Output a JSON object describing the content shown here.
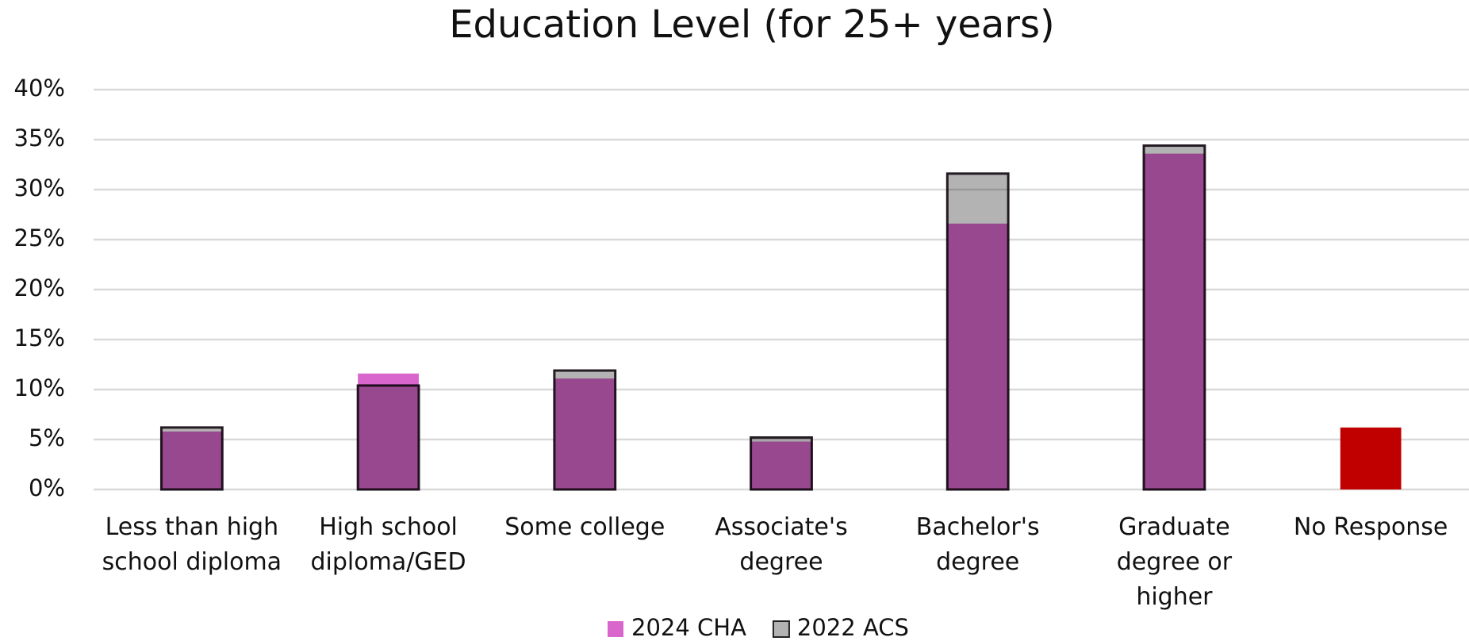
{
  "chart_data": {
    "type": "bar",
    "title": "Education Level (for 25+ years)",
    "categories": [
      "Less than high school diploma",
      "High school diploma/GED",
      "Some college",
      "Associate's degree",
      "Bachelor's degree",
      "Graduate degree or higher",
      "No Response"
    ],
    "series": [
      {
        "name": "2024 CHA",
        "color": "#d966cc",
        "colors": [
          "#d966cc",
          "#d966cc",
          "#d966cc",
          "#d966cc",
          "#d966cc",
          "#d966cc",
          "#c00000"
        ],
        "values": [
          5.8,
          11.6,
          11.1,
          4.8,
          26.6,
          33.6,
          6.2
        ]
      },
      {
        "name": "2022 ACS",
        "color": "#b3b3b3",
        "values": [
          6.2,
          10.4,
          11.9,
          5.2,
          31.6,
          34.4,
          null
        ]
      }
    ],
    "ylim": [
      0,
      40
    ],
    "yticks": [
      {
        "value": 0,
        "label": "0%"
      },
      {
        "value": 5,
        "label": "5%"
      },
      {
        "value": 10,
        "label": "10%"
      },
      {
        "value": 15,
        "label": "15%"
      },
      {
        "value": 20,
        "label": "20%"
      },
      {
        "value": 25,
        "label": "25%"
      },
      {
        "value": 30,
        "label": "30%"
      },
      {
        "value": 35,
        "label": "35%"
      },
      {
        "value": 40,
        "label": "40%"
      }
    ],
    "grid": true,
    "legend": "bottom"
  }
}
